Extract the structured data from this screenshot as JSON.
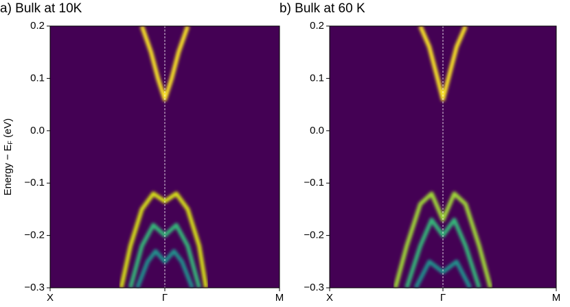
{
  "chart_data": [
    {
      "type": "spectral",
      "title": "a) Bulk at 10K",
      "ylabel": [
        "Energy − E",
        "F",
        " (eV)"
      ],
      "categories": [
        "X",
        "Γ",
        "M"
      ],
      "ylim": [
        -0.3,
        0.2
      ],
      "yticks": [
        0.2,
        0.1,
        {
          "value": 0,
          "label": "0.0"
        },
        {
          "value": -0.1,
          "label": "−0.1"
        },
        {
          "value": -0.2,
          "label": "−0.2"
        },
        {
          "value": -0.3,
          "label": "−0.3"
        }
      ],
      "background": "#440154",
      "series": [
        {
          "color": "#fde725",
          "x": [
            -0.2,
            -0.12,
            -0.06,
            0,
            0.06,
            0.12,
            0.2
          ],
          "values": [
            0.2,
            0.15,
            0.1,
            0.06,
            0.1,
            0.15,
            0.2
          ]
        },
        {
          "color": "#d8e219",
          "x": [
            -0.38,
            -0.3,
            -0.2,
            -0.1,
            0,
            0.1,
            0.2,
            0.3,
            0.36
          ],
          "values": [
            -0.3,
            -0.22,
            -0.15,
            -0.12,
            -0.135,
            -0.12,
            -0.15,
            -0.22,
            -0.3
          ]
        },
        {
          "color": "#35b779",
          "x": [
            -0.3,
            -0.2,
            -0.1,
            0,
            0.1,
            0.2,
            0.3
          ],
          "values": [
            -0.3,
            -0.22,
            -0.18,
            -0.2,
            -0.18,
            -0.22,
            -0.3
          ]
        },
        {
          "color": "#21918c",
          "x": [
            -0.24,
            -0.15,
            -0.08,
            0,
            0.08,
            0.15,
            0.24
          ],
          "values": [
            -0.3,
            -0.25,
            -0.23,
            -0.25,
            -0.23,
            -0.25,
            -0.3
          ]
        }
      ]
    },
    {
      "type": "spectral",
      "title": "b) Bulk at 60 K",
      "categories": [
        "X",
        "Γ",
        "M"
      ],
      "ylim": [
        -0.3,
        0.2
      ],
      "yticks": [
        0.2,
        0.1,
        {
          "value": 0,
          "label": "0.0"
        },
        {
          "value": -0.1,
          "label": "−0.1"
        },
        {
          "value": -0.2,
          "label": "−0.2"
        },
        {
          "value": -0.3,
          "label": "−0.3"
        }
      ],
      "background": "#440154",
      "series": [
        {
          "color": "#fde725",
          "x": [
            -0.2,
            -0.12,
            -0.06,
            0,
            0.06,
            0.12,
            0.2
          ],
          "values": [
            0.2,
            0.16,
            0.11,
            0.06,
            0.11,
            0.16,
            0.2
          ]
        },
        {
          "color": "#a0da39",
          "x": [
            -0.42,
            -0.32,
            -0.2,
            -0.1,
            0,
            0.1,
            0.2,
            0.32,
            0.42
          ],
          "values": [
            -0.3,
            -0.22,
            -0.14,
            -0.12,
            -0.17,
            -0.12,
            -0.14,
            -0.22,
            -0.3
          ]
        },
        {
          "color": "#35b779",
          "x": [
            -0.32,
            -0.2,
            -0.1,
            0,
            0.1,
            0.2,
            0.32
          ],
          "values": [
            -0.3,
            -0.22,
            -0.17,
            -0.2,
            -0.17,
            -0.22,
            -0.3
          ]
        },
        {
          "color": "#21918c",
          "x": [
            -0.24,
            -0.12,
            0,
            0.12,
            0.24
          ],
          "values": [
            -0.3,
            -0.25,
            -0.27,
            -0.25,
            -0.3
          ]
        }
      ]
    }
  ]
}
